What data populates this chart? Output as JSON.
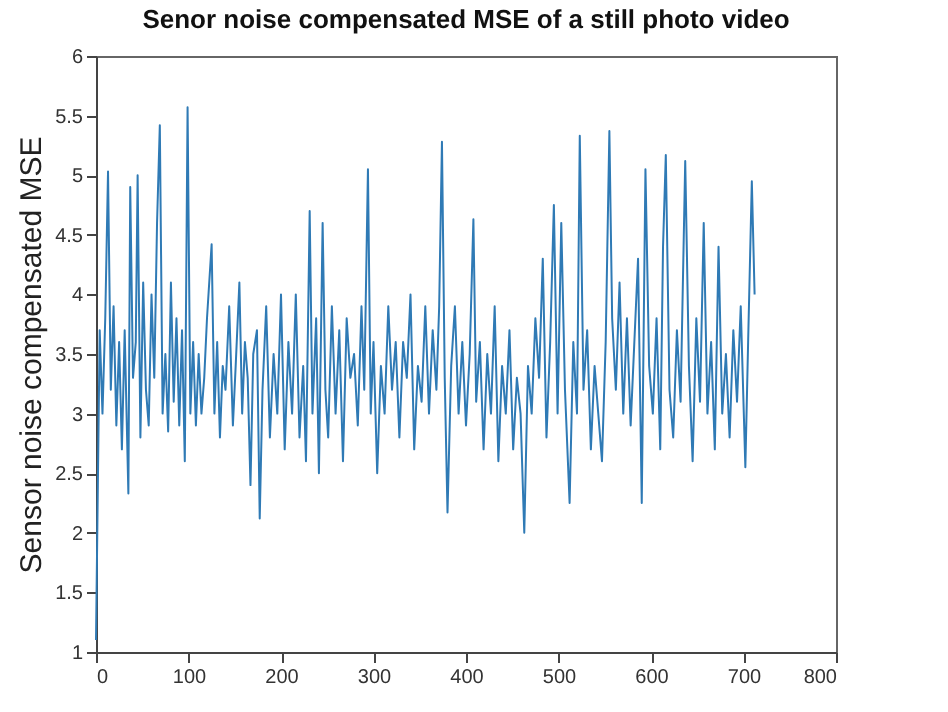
{
  "chart_data": {
    "type": "line",
    "title": "Senor noise compensated MSE of a still photo video",
    "ylabel": "Sensor noise compensated MSE",
    "xlim": [
      0,
      800
    ],
    "xticks": [
      0,
      100,
      200,
      300,
      400,
      500,
      600,
      700,
      800
    ],
    "ylim": [
      1,
      6
    ],
    "yticks": [
      1,
      1.5,
      2,
      2.5,
      3,
      3.5,
      4,
      4.5,
      5,
      5.5,
      6
    ],
    "grid": false,
    "marker": "none",
    "line_style": "solid",
    "series": [
      {
        "color": "#2f7ab5",
        "x": [
          0,
          2,
          4,
          7,
          10,
          13,
          16,
          19,
          22,
          25,
          28,
          31,
          35,
          37,
          40,
          43,
          45,
          48,
          51,
          54,
          57,
          60,
          63,
          66,
          69,
          72,
          75,
          78,
          81,
          84,
          87,
          90,
          93,
          96,
          99,
          102,
          105,
          108,
          111,
          114,
          117,
          120,
          125,
          128,
          131,
          134,
          137,
          140,
          144,
          148,
          151,
          155,
          158,
          161,
          164,
          167,
          170,
          174,
          177,
          180,
          184,
          188,
          192,
          196,
          200,
          204,
          208,
          212,
          216,
          220,
          224,
          227,
          231,
          234,
          238,
          241,
          245,
          248,
          251,
          255,
          259,
          263,
          267,
          271,
          275,
          279,
          283,
          287,
          290,
          294,
          297,
          300,
          304,
          308,
          312,
          316,
          320,
          324,
          328,
          332,
          336,
          340,
          344,
          348,
          352,
          356,
          360,
          364,
          368,
          371,
          374,
          377,
          380,
          384,
          388,
          392,
          396,
          400,
          404,
          408,
          411,
          415,
          419,
          423,
          427,
          431,
          435,
          439,
          443,
          447,
          451,
          455,
          459,
          463,
          467,
          471,
          475,
          479,
          483,
          487,
          491,
          495,
          499,
          503,
          507,
          512,
          516,
          520,
          523,
          527,
          531,
          535,
          539,
          543,
          547,
          551,
          555,
          558,
          562,
          566,
          570,
          574,
          578,
          582,
          586,
          590,
          594,
          598,
          602,
          606,
          610,
          613,
          616,
          620,
          624,
          628,
          632,
          637,
          641,
          645,
          649,
          653,
          657,
          661,
          665,
          669,
          673,
          677,
          681,
          685,
          689,
          693,
          697,
          702,
          705,
          709,
          712
        ],
        "values": [
          1.1,
          2.4,
          3.7,
          3.0,
          3.8,
          5.03,
          3.2,
          3.9,
          2.9,
          3.6,
          2.7,
          3.7,
          2.33,
          4.9,
          3.3,
          3.6,
          5.0,
          2.8,
          4.1,
          3.2,
          2.9,
          4.0,
          3.3,
          4.6,
          5.42,
          3.0,
          3.5,
          2.85,
          4.1,
          3.1,
          3.8,
          2.9,
          3.7,
          2.6,
          5.57,
          3.0,
          3.6,
          2.9,
          3.5,
          3.0,
          3.3,
          3.8,
          4.42,
          3.0,
          3.6,
          2.8,
          3.4,
          3.2,
          3.9,
          2.9,
          3.4,
          4.1,
          3.0,
          3.6,
          3.3,
          2.4,
          3.5,
          3.7,
          2.12,
          3.2,
          3.9,
          2.8,
          3.5,
          3.0,
          4.0,
          2.7,
          3.6,
          3.0,
          4.0,
          2.8,
          3.4,
          2.6,
          4.7,
          3.0,
          3.8,
          2.5,
          4.6,
          3.2,
          2.8,
          3.9,
          3.0,
          3.7,
          2.6,
          3.8,
          3.3,
          3.5,
          2.9,
          3.9,
          3.2,
          5.05,
          3.0,
          3.6,
          2.5,
          3.4,
          3.0,
          3.9,
          3.2,
          3.6,
          2.8,
          3.6,
          3.3,
          4.0,
          2.7,
          3.4,
          3.1,
          3.9,
          3.0,
          3.7,
          3.2,
          3.9,
          5.28,
          3.3,
          2.17,
          3.4,
          3.9,
          3.0,
          3.6,
          2.9,
          3.5,
          4.63,
          3.1,
          3.6,
          2.7,
          3.5,
          3.0,
          3.9,
          2.6,
          3.4,
          3.0,
          3.7,
          2.7,
          3.3,
          3.0,
          2.0,
          3.4,
          3.0,
          3.8,
          3.3,
          4.3,
          2.8,
          3.6,
          4.75,
          3.0,
          4.6,
          3.2,
          2.25,
          3.6,
          3.0,
          5.33,
          3.2,
          3.7,
          2.7,
          3.4,
          3.0,
          2.6,
          3.6,
          5.37,
          3.8,
          3.2,
          4.1,
          3.0,
          3.8,
          2.9,
          3.6,
          4.3,
          2.25,
          5.05,
          3.4,
          3.0,
          3.8,
          2.7,
          4.4,
          5.17,
          3.2,
          2.8,
          3.7,
          3.1,
          5.12,
          3.4,
          2.6,
          3.8,
          3.1,
          4.6,
          3.0,
          3.6,
          2.7,
          4.4,
          3.0,
          3.5,
          2.8,
          3.7,
          3.1,
          3.9,
          2.55,
          3.6,
          4.95,
          4.0
        ]
      }
    ]
  }
}
